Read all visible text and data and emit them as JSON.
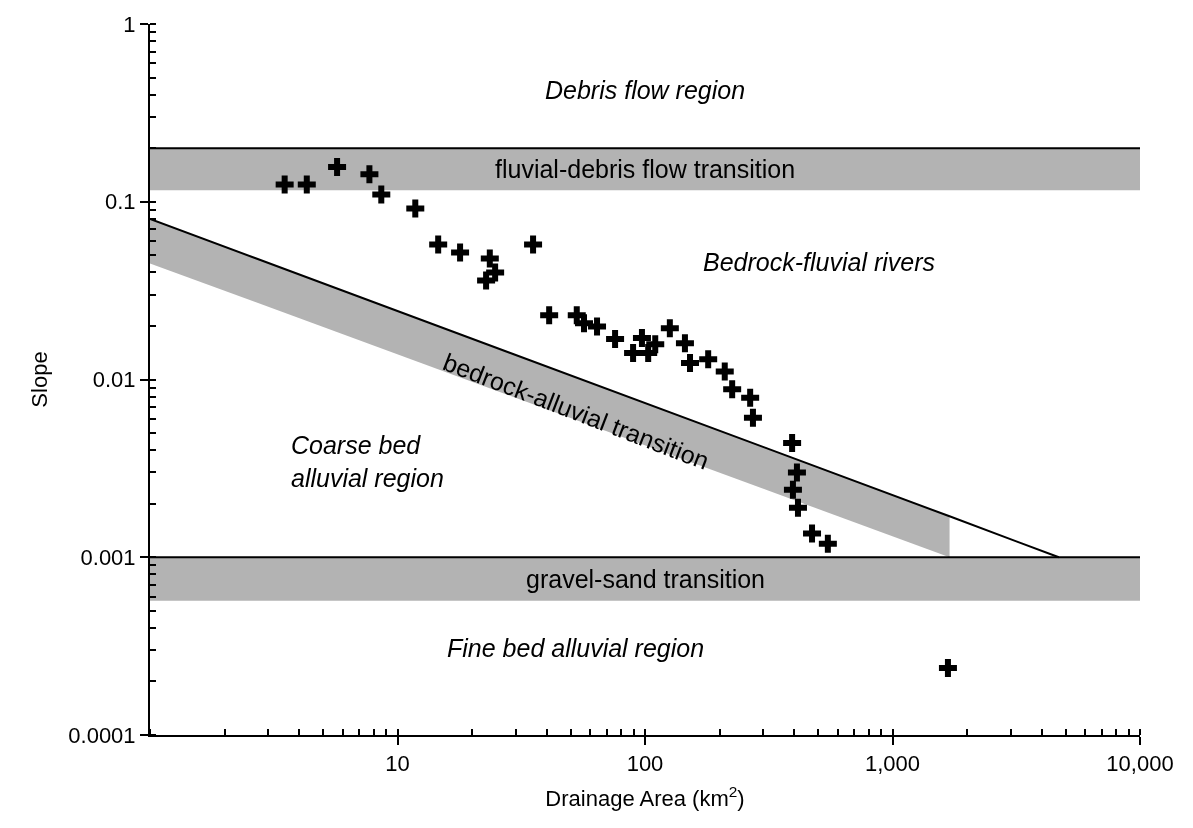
{
  "chart_data": {
    "type": "scatter",
    "xlabel": "Drainage Area (km$^{2}$)",
    "ylabel": "Slope",
    "log": "xy",
    "grid": false,
    "xlim": [
      1,
      10000
    ],
    "xticks": [
      10,
      100,
      {
        "value": 1000,
        "label": "1,000"
      },
      {
        "value": 10000,
        "label": "10,000"
      }
    ],
    "ylim": [
      0.0001,
      1
    ],
    "yticks": [
      0.0001,
      0.001,
      0.01,
      0.1,
      1
    ],
    "bands": [
      {
        "axis": "y",
        "from": 0.116,
        "to": 0.2,
        "label": "fluvial-debris flow transition",
        "color": "#b3b3b3"
      },
      {
        "axis": "y",
        "from": 0.00057,
        "to": 0.001,
        "label": "gravel-sand transition",
        "color": "#b3b3b3"
      }
    ],
    "ref_lines": [
      {
        "axis": "y",
        "value": 0.2,
        "color": "#000000"
      },
      {
        "axis": "y",
        "value": 0.001,
        "color": "#000000"
      }
    ],
    "annotations": [
      "Debris flow region",
      "Bedrock-fluvial rivers",
      "Coarse bed\nalluvial region",
      "Fine bed alluvial region",
      "bedrock-alluvial transition"
    ],
    "series": [
      {
        "type": "line",
        "color": "#000000",
        "x": [
          1,
          1700,
          4700
        ],
        "values": [
          0.08,
          0.0017,
          0.001
        ],
        "lower": [
          0.045,
          0.001,
          null
        ],
        "upper": [
          0.08,
          0.0017,
          null
        ]
      },
      {
        "marker": "cross",
        "color": "#000000",
        "x": [
          3.5,
          4.3,
          5.7,
          7.7,
          8.6,
          11.8,
          14.6,
          17.9,
          23.6,
          24.8,
          22.8,
          35.3,
          41,
          53,
          56.7,
          64,
          75.7,
          89.5,
          97.2,
          103,
          110,
          126,
          145,
          152,
          180,
          210,
          225,
          266,
          273,
          393,
          411,
          396,
          415,
          473,
          548,
          1675
        ],
        "values": [
          0.125,
          0.125,
          0.157,
          0.143,
          0.11,
          0.0915,
          0.0575,
          0.0518,
          0.048,
          0.04,
          0.036,
          0.0575,
          0.023,
          0.023,
          0.0207,
          0.0199,
          0.0169,
          0.0141,
          0.0171,
          0.0141,
          0.0158,
          0.0194,
          0.016,
          0.0124,
          0.013,
          0.0111,
          0.0088,
          0.0079,
          0.0061,
          0.0044,
          0.003,
          0.0024,
          0.0019,
          0.00136,
          0.00119,
          0.000238
        ]
      }
    ]
  }
}
